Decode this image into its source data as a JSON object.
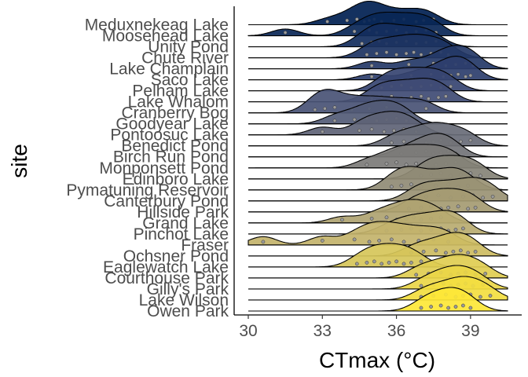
{
  "chart_data": {
    "type": "ridgeline",
    "xlabel": "CTmax (°C)",
    "ylabel": "site",
    "xlim": [
      29.6,
      40.8
    ],
    "xticks": [
      30,
      33,
      36,
      39
    ],
    "grid": false,
    "legend": "none",
    "palette": "cividis",
    "sites": [
      {
        "name": "Meduxnekeag Lake",
        "points": [
          33.2,
          34.0,
          34.4,
          34.7,
          34.9,
          35.1,
          35.4,
          35.9,
          36.3,
          36.8,
          37.1,
          37.5
        ]
      },
      {
        "name": "Moosehead Lake",
        "points": [
          31.5,
          34.3,
          34.9,
          35.2,
          35.6,
          36.0,
          36.4,
          36.8,
          37.2,
          37.6
        ]
      },
      {
        "name": "Unity Pond",
        "points": [
          34.6,
          35.0,
          35.3,
          35.6,
          36.0,
          36.4,
          36.8,
          37.2,
          37.6
        ]
      },
      {
        "name": "Chute River",
        "points": [
          34.8,
          35.2,
          35.6,
          36.0,
          36.4,
          36.7,
          37.0,
          37.4,
          37.8,
          38.1
        ]
      },
      {
        "name": "Lake Champlain",
        "points": [
          35.0,
          36.5,
          37.5,
          38.0,
          38.4,
          38.8,
          39.1
        ]
      },
      {
        "name": "Saco Lake",
        "points": [
          35.0,
          36.6,
          37.4,
          37.9,
          38.2,
          38.5,
          38.8,
          39.0
        ]
      },
      {
        "name": "Pelham Lake",
        "points": [
          35.4,
          35.8,
          36.2,
          36.6,
          37.0,
          37.4,
          37.8,
          38.2
        ]
      },
      {
        "name": "Lake Whalom",
        "points": [
          35.0,
          35.4,
          35.8,
          36.2,
          36.6,
          37.0,
          37.3,
          37.7,
          38.0
        ]
      },
      {
        "name": "Cranberry Bog",
        "points": [
          32.7,
          33.1,
          33.5,
          34.2,
          34.9,
          35.6,
          36.4,
          37.2
        ]
      },
      {
        "name": "Goodyear Lake",
        "points": [
          33.5,
          34.3,
          34.8,
          35.2,
          35.6,
          36.0,
          36.4
        ]
      },
      {
        "name": "Pontoosuc Lake",
        "points": [
          33.0,
          34.5,
          35.0,
          35.5,
          35.9,
          36.3,
          36.8
        ]
      },
      {
        "name": "Benedict Pond",
        "points": [
          35.8,
          36.3,
          36.8,
          37.2,
          37.5,
          37.8,
          38.2,
          38.6,
          39.0
        ]
      },
      {
        "name": "Birch Run Pond",
        "points": [
          36.2,
          36.8,
          37.2,
          37.5,
          37.8,
          38.1,
          38.4
        ]
      },
      {
        "name": "Monponsett Pond",
        "points": [
          34.8,
          35.6,
          36.0,
          36.4,
          36.8,
          37.2,
          37.6,
          38.0,
          38.4
        ]
      },
      {
        "name": "Edinboro Lake",
        "points": [
          37.0,
          37.4,
          37.8,
          38.2,
          38.6,
          39.0,
          39.4
        ]
      },
      {
        "name": "Pymatuning Reservoir",
        "points": [
          35.8,
          36.2,
          36.6,
          37.0,
          37.6,
          38.1,
          38.5,
          38.9
        ]
      },
      {
        "name": "Canterbury Pond",
        "points": [
          36.7,
          37.2,
          37.7,
          38.2,
          38.7,
          39.1,
          39.5,
          39.9
        ]
      },
      {
        "name": "Hillside Park",
        "points": [
          36.5,
          37.0,
          37.4,
          37.8,
          38.1,
          38.5,
          38.9,
          39.2
        ]
      },
      {
        "name": "Grand Lake",
        "points": [
          33.8,
          35.0,
          35.6,
          36.0,
          36.4,
          36.7,
          37.0,
          37.4,
          37.8
        ]
      },
      {
        "name": "Pinchot Lake",
        "points": [
          35.6,
          36.2,
          36.6,
          37.0,
          37.4,
          37.8,
          38.1,
          38.4,
          38.7
        ]
      },
      {
        "name": "Fraser",
        "points": [
          30.6,
          33.0,
          34.3,
          34.9,
          35.3,
          35.8,
          36.3,
          36.9,
          37.5,
          38.1
        ]
      },
      {
        "name": "Ochsner Pond",
        "points": [
          36.6,
          37.1,
          37.6,
          38.0,
          38.3,
          38.6,
          38.9,
          39.2
        ]
      },
      {
        "name": "Eaglewatch Lake",
        "points": [
          34.4,
          34.8,
          35.1,
          35.4,
          35.7,
          36.0,
          36.3,
          36.6,
          37.0
        ]
      },
      {
        "name": "Courthouse Park",
        "points": [
          36.8,
          37.3,
          37.8,
          38.2,
          38.5,
          38.8,
          39.2,
          39.6
        ]
      },
      {
        "name": "Gilly's Park",
        "points": [
          37.0,
          37.5,
          37.9,
          38.2,
          38.5,
          38.8,
          39.1,
          39.5
        ]
      },
      {
        "name": "Lake Wilson",
        "points": [
          37.0,
          37.5,
          38.0,
          38.4,
          38.7,
          39.0,
          39.4,
          39.8
        ]
      },
      {
        "name": "Owen Park",
        "points": [
          37.0,
          37.4,
          37.8,
          38.1,
          38.4,
          38.7,
          39.0
        ]
      }
    ]
  }
}
